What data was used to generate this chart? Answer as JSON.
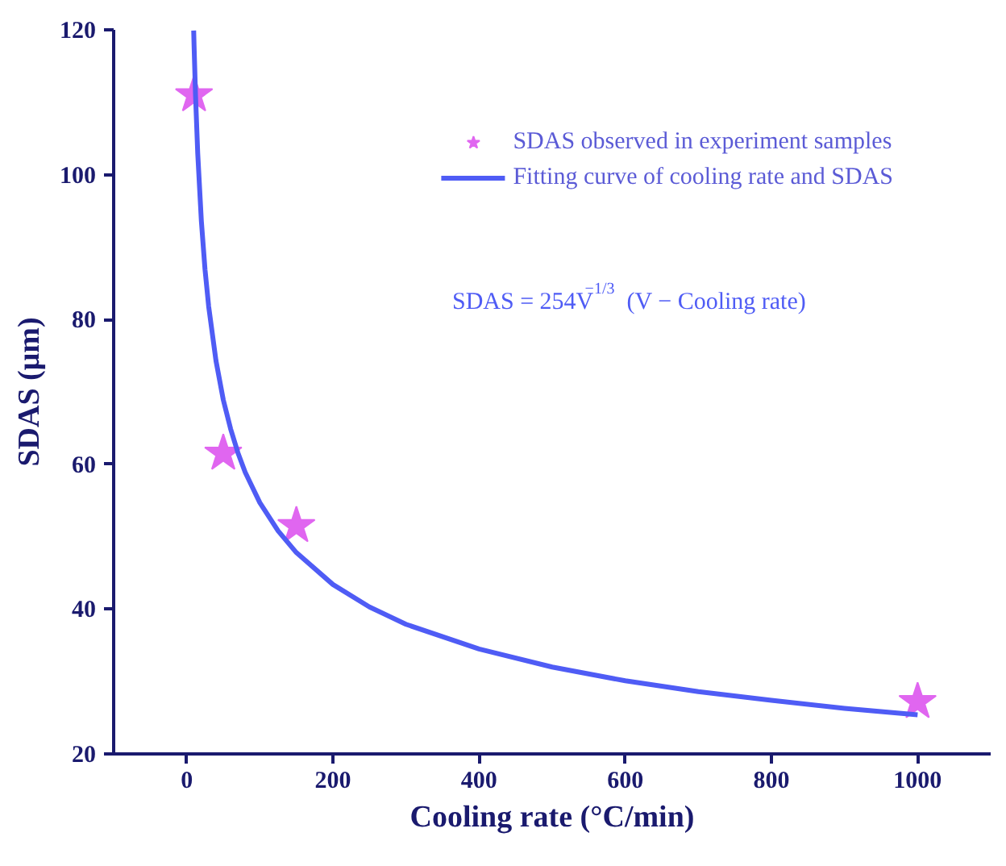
{
  "chart_data": {
    "type": "scatter",
    "xlabel": "Cooling rate (°C/min)",
    "ylabel": "SDAS (μm)",
    "xlim": [
      -100,
      1100
    ],
    "ylim": [
      20,
      120
    ],
    "xticks": [
      0,
      200,
      400,
      600,
      800,
      1000
    ],
    "yticks": [
      20,
      40,
      60,
      80,
      100,
      120
    ],
    "grid": false,
    "legend": "top right",
    "series": [
      {
        "name": "SDAS observed in experiment samples",
        "marker": "star",
        "color": "#e066f0",
        "x": [
          10,
          50,
          150,
          1000
        ],
        "values": [
          111,
          61.5,
          51.5,
          27.2
        ]
      },
      {
        "name": "Fitting curve of cooling rate and SDAS",
        "type": "line",
        "line_style": "solid",
        "color": "#4f5cf5",
        "x": [
          9.5,
          10,
          12,
          15,
          20,
          25,
          30,
          40,
          50,
          60,
          70,
          80,
          100,
          125,
          150,
          200,
          250,
          300,
          400,
          500,
          600,
          700,
          800,
          900,
          1000
        ],
        "values": [
          119.9,
          117.9,
          111.0,
          103.0,
          93.6,
          86.9,
          81.8,
          74.3,
          68.9,
          64.9,
          61.6,
          58.9,
          54.7,
          50.8,
          47.8,
          43.4,
          40.3,
          37.9,
          34.5,
          32.0,
          30.1,
          28.6,
          27.4,
          26.3,
          25.4
        ]
      }
    ],
    "annotations": [
      "SDAS = 254V$^{−1/3}$   (V − Cooling rate)"
    ]
  }
}
